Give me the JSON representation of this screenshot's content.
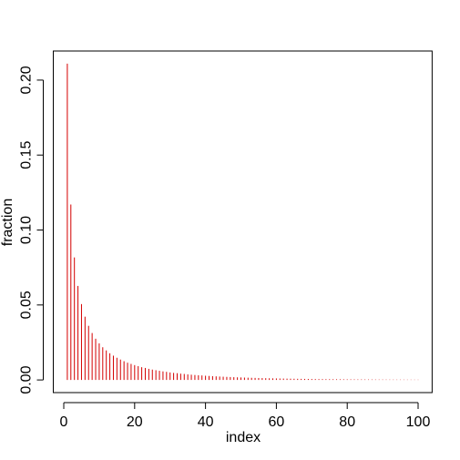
{
  "chart_data": {
    "type": "stem",
    "x_label": "index",
    "y_label": "fraction",
    "color": "#d40000",
    "x": [
      1,
      2,
      3,
      4,
      5,
      6,
      7,
      8,
      9,
      10,
      11,
      12,
      13,
      14,
      15,
      16,
      17,
      18,
      19,
      20,
      21,
      22,
      23,
      24,
      25,
      26,
      27,
      28,
      29,
      30,
      31,
      32,
      33,
      34,
      35,
      36,
      37,
      38,
      39,
      40,
      41,
      42,
      43,
      44,
      45,
      46,
      47,
      48,
      49,
      50,
      51,
      52,
      53,
      54,
      55,
      56,
      57,
      58,
      59,
      60,
      61,
      62,
      63,
      64,
      65,
      66,
      67,
      68,
      69,
      70,
      71,
      72,
      73,
      74,
      75,
      76,
      77,
      78,
      79,
      80,
      81,
      82,
      83,
      84,
      85,
      86,
      87,
      88,
      89,
      90,
      91,
      92,
      93,
      94,
      95,
      96,
      97,
      98,
      99,
      100
    ],
    "values": [
      0.211,
      0.117,
      0.0817,
      0.0627,
      0.0506,
      0.0422,
      0.0361,
      0.0313,
      0.0275,
      0.0244,
      0.0218,
      0.0197,
      0.0178,
      0.0162,
      0.0148,
      0.0136,
      0.0125,
      0.0115,
      0.0107,
      0.0099,
      0.0092,
      0.0085,
      0.008,
      0.0074,
      0.0069,
      0.0065,
      0.0061,
      0.0057,
      0.0054,
      0.005,
      0.0047,
      0.0045,
      0.0042,
      0.004,
      0.0037,
      0.0035,
      0.0033,
      0.0031,
      0.003,
      0.0028,
      0.002669,
      0.002528,
      0.002396,
      0.002271,
      0.002154,
      0.002044,
      0.00194,
      0.001842,
      0.00175,
      0.001663,
      0.001581,
      0.001503,
      0.00143,
      0.00136,
      0.001294,
      0.001232,
      0.001173,
      0.001117,
      0.001064,
      0.001014,
      0.000967,
      0.000922,
      0.000879,
      0.000838,
      0.0008,
      0.000763,
      0.000728,
      0.000695,
      0.000663,
      0.000633,
      0.000605,
      0.000578,
      0.000552,
      0.000528,
      0.000504,
      0.000482,
      0.000461,
      0.000441,
      0.000422,
      0.000403,
      0.000386,
      0.000369,
      0.000353,
      0.000338,
      0.000324,
      0.00031,
      0.000297,
      0.000284,
      0.000272,
      0.000261,
      0.00025,
      0.000239,
      0.000229,
      0.00022,
      0.000211,
      0.000202,
      0.000193,
      0.000185,
      0.000178,
      0.00017
    ],
    "xlim": [
      -2.96,
      103.96
    ],
    "xticks": [
      0,
      20,
      40,
      60,
      80,
      100
    ],
    "ylim": [
      -0.00844,
      0.2194
    ],
    "yticks": [
      {
        "value": 0,
        "label": "0.00"
      },
      {
        "value": 0.05,
        "label": "0.05"
      },
      {
        "value": 0.1,
        "label": "0.10"
      },
      {
        "value": 0.15,
        "label": "0.15"
      },
      {
        "value": 0.2,
        "label": "0.20"
      }
    ]
  }
}
